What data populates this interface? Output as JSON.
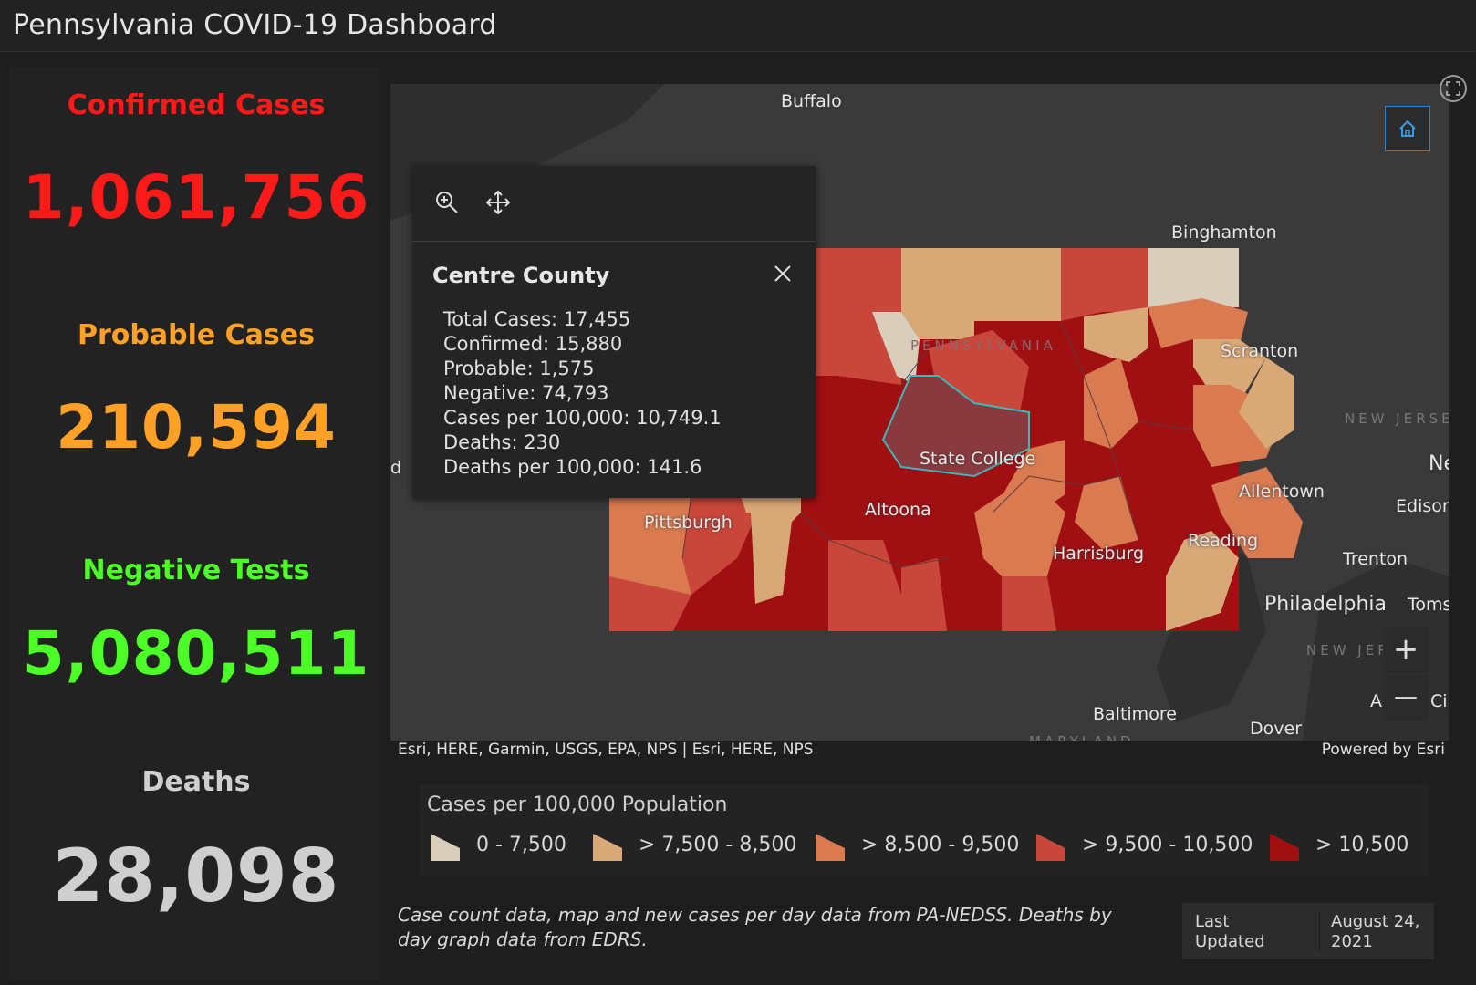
{
  "header": {
    "title": "Pennsylvania COVID-19 Dashboard"
  },
  "stats": {
    "confirmed": {
      "label": "Confirmed Cases",
      "value": "1,061,756",
      "color": "#ff1a1a"
    },
    "probable": {
      "label": "Probable Cases",
      "value": "210,594",
      "color": "#ffa126"
    },
    "negative": {
      "label": "Negative Tests",
      "value": "5,080,511",
      "color": "#4cff26"
    },
    "deaths": {
      "label": "Deaths",
      "value": "28,098",
      "color": "#cfcfcf"
    }
  },
  "popup": {
    "title": "Centre County",
    "lines": [
      "Total Cases: 17,455",
      "Confirmed: 15,880",
      "Probable: 1,575",
      "Negative: 74,793",
      "Cases per 100,000: 10,749.1",
      "Deaths: 230",
      "Deaths per 100,000: 141.6"
    ]
  },
  "map": {
    "cities": {
      "buffalo": "Buffalo",
      "binghamton": "Binghamton",
      "scranton": "Scranton",
      "state_college": "State College",
      "altoona": "Altoona",
      "pittsburgh": "Pittsburgh",
      "allentown": "Allentown",
      "edison": "Edison",
      "reading": "Reading",
      "harrisburg": "Harrisburg",
      "trenton": "Trenton",
      "philadelphia": "Philadelphia",
      "toms": "Toms",
      "baltimore": "Baltimore",
      "dover": "Dover",
      "a_c": "A",
      "ci": "Ci",
      "ne": "Ne",
      "d": "d"
    },
    "faint_labels": {
      "new_jersey": "NEW JERSEY",
      "new_jer": "NEW JER",
      "pennsylvania": "PENNSYLVANIA",
      "maryland": "MARYLAND"
    },
    "attribution": "Esri, HERE, Garmin, USGS, EPA, NPS | Esri, HERE, NPS",
    "powered_by": "Powered by Esri",
    "zoom_in_label": "+",
    "zoom_out_label": "—"
  },
  "legend": {
    "title": "Cases per 100,000 Population",
    "items": [
      {
        "label": "0 - 7,500",
        "color": "#d9cdbb"
      },
      {
        "label": "> 7,500 - 8,500",
        "color": "#d9a877"
      },
      {
        "label": "> 8,500 - 9,500",
        "color": "#d97a50"
      },
      {
        "label": "> 9,500 - 10,500",
        "color": "#c9473a"
      },
      {
        "label": "> 10,500",
        "color": "#a00f12"
      }
    ]
  },
  "footnote": "Case count data, map and new cases per day data from PA-NEDSS.  Deaths by day graph data from EDRS.",
  "last_updated": {
    "label": "Last Updated",
    "value": "August 24, 2021"
  }
}
